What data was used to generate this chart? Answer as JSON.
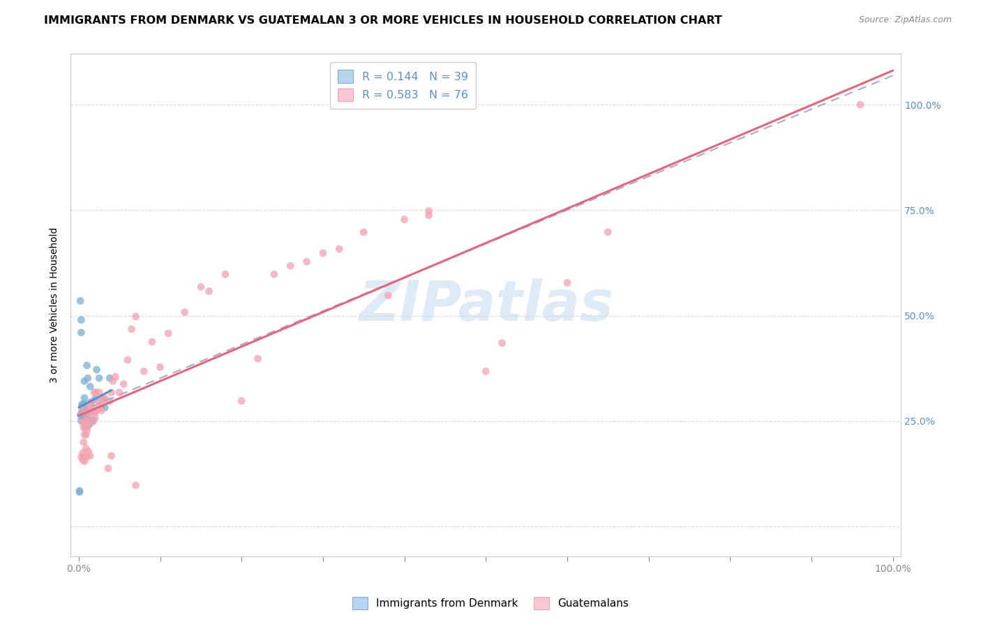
{
  "title": "IMMIGRANTS FROM DENMARK VS GUATEMALAN 3 OR MORE VEHICLES IN HOUSEHOLD CORRELATION CHART",
  "source": "Source: ZipAtlas.com",
  "ylabel": "3 or more Vehicles in Household",
  "legend_label1": "Immigrants from Denmark",
  "legend_label2": "Guatemalans",
  "r1": 0.144,
  "n1": 39,
  "r2": 0.583,
  "n2": 76,
  "color_blue": "#7BAFD4",
  "color_pink": "#F4A0B0",
  "color_blue_patch": "#B8D4EE",
  "color_pink_patch": "#F9C8D2",
  "color_blue_border": "#7BAFD4",
  "color_pink_border": "#F4A0B0",
  "watermark_color": "#C8DCF0",
  "trend_pink": "#E8637A",
  "trend_blue": "#5B8FC4",
  "trend_dash": "#AAAACC",
  "background_color": "#FFFFFF",
  "grid_color": "#D8D8E8",
  "right_axis_color": "#5B8FCC",
  "title_fontsize": 11.5,
  "source_fontsize": 9,
  "blue_points_x": [
    0.002,
    0.003,
    0.003,
    0.004,
    0.004,
    0.005,
    0.005,
    0.005,
    0.006,
    0.006,
    0.006,
    0.007,
    0.007,
    0.007,
    0.008,
    0.008,
    0.009,
    0.01,
    0.01,
    0.011,
    0.011,
    0.012,
    0.013,
    0.013,
    0.014,
    0.015,
    0.016,
    0.018,
    0.02,
    0.022,
    0.025,
    0.028,
    0.03,
    0.032,
    0.038,
    0.001,
    0.001,
    0.002,
    0.003
  ],
  "blue_points_y": [
    0.535,
    0.49,
    0.46,
    0.285,
    0.29,
    0.265,
    0.26,
    0.275,
    0.25,
    0.262,
    0.272,
    0.305,
    0.292,
    0.345,
    0.263,
    0.242,
    0.252,
    0.28,
    0.382,
    0.265,
    0.352,
    0.272,
    0.272,
    0.242,
    0.332,
    0.295,
    0.252,
    0.252,
    0.302,
    0.372,
    0.352,
    0.282,
    0.302,
    0.282,
    0.352,
    0.082,
    0.085,
    0.265,
    0.252
  ],
  "pink_points_x": [
    0.003,
    0.004,
    0.004,
    0.005,
    0.005,
    0.006,
    0.007,
    0.007,
    0.008,
    0.009,
    0.01,
    0.01,
    0.011,
    0.012,
    0.013,
    0.014,
    0.015,
    0.016,
    0.017,
    0.018,
    0.019,
    0.02,
    0.021,
    0.022,
    0.024,
    0.025,
    0.028,
    0.03,
    0.032,
    0.036,
    0.038,
    0.04,
    0.042,
    0.045,
    0.05,
    0.055,
    0.06,
    0.065,
    0.07,
    0.08,
    0.09,
    0.1,
    0.11,
    0.13,
    0.15,
    0.16,
    0.18,
    0.2,
    0.22,
    0.24,
    0.26,
    0.28,
    0.3,
    0.32,
    0.35,
    0.38,
    0.4,
    0.43,
    0.5,
    0.52,
    0.6,
    0.65,
    0.43,
    0.006,
    0.006,
    0.007,
    0.008,
    0.009,
    0.01,
    0.012,
    0.014,
    0.02,
    0.025,
    0.04,
    0.07,
    0.96
  ],
  "pink_points_y": [
    0.165,
    0.275,
    0.248,
    0.175,
    0.158,
    0.235,
    0.218,
    0.275,
    0.248,
    0.218,
    0.228,
    0.258,
    0.238,
    0.248,
    0.285,
    0.27,
    0.295,
    0.285,
    0.248,
    0.275,
    0.318,
    0.27,
    0.318,
    0.275,
    0.298,
    0.318,
    0.275,
    0.298,
    0.305,
    0.138,
    0.298,
    0.318,
    0.345,
    0.355,
    0.318,
    0.338,
    0.395,
    0.468,
    0.498,
    0.368,
    0.438,
    0.378,
    0.458,
    0.508,
    0.568,
    0.558,
    0.598,
    0.298,
    0.398,
    0.598,
    0.618,
    0.628,
    0.648,
    0.658,
    0.698,
    0.548,
    0.728,
    0.738,
    0.368,
    0.435,
    0.578,
    0.698,
    0.748,
    0.165,
    0.2,
    0.155,
    0.235,
    0.185,
    0.165,
    0.178,
    0.168,
    0.258,
    0.285,
    0.168,
    0.098,
    1.0
  ]
}
